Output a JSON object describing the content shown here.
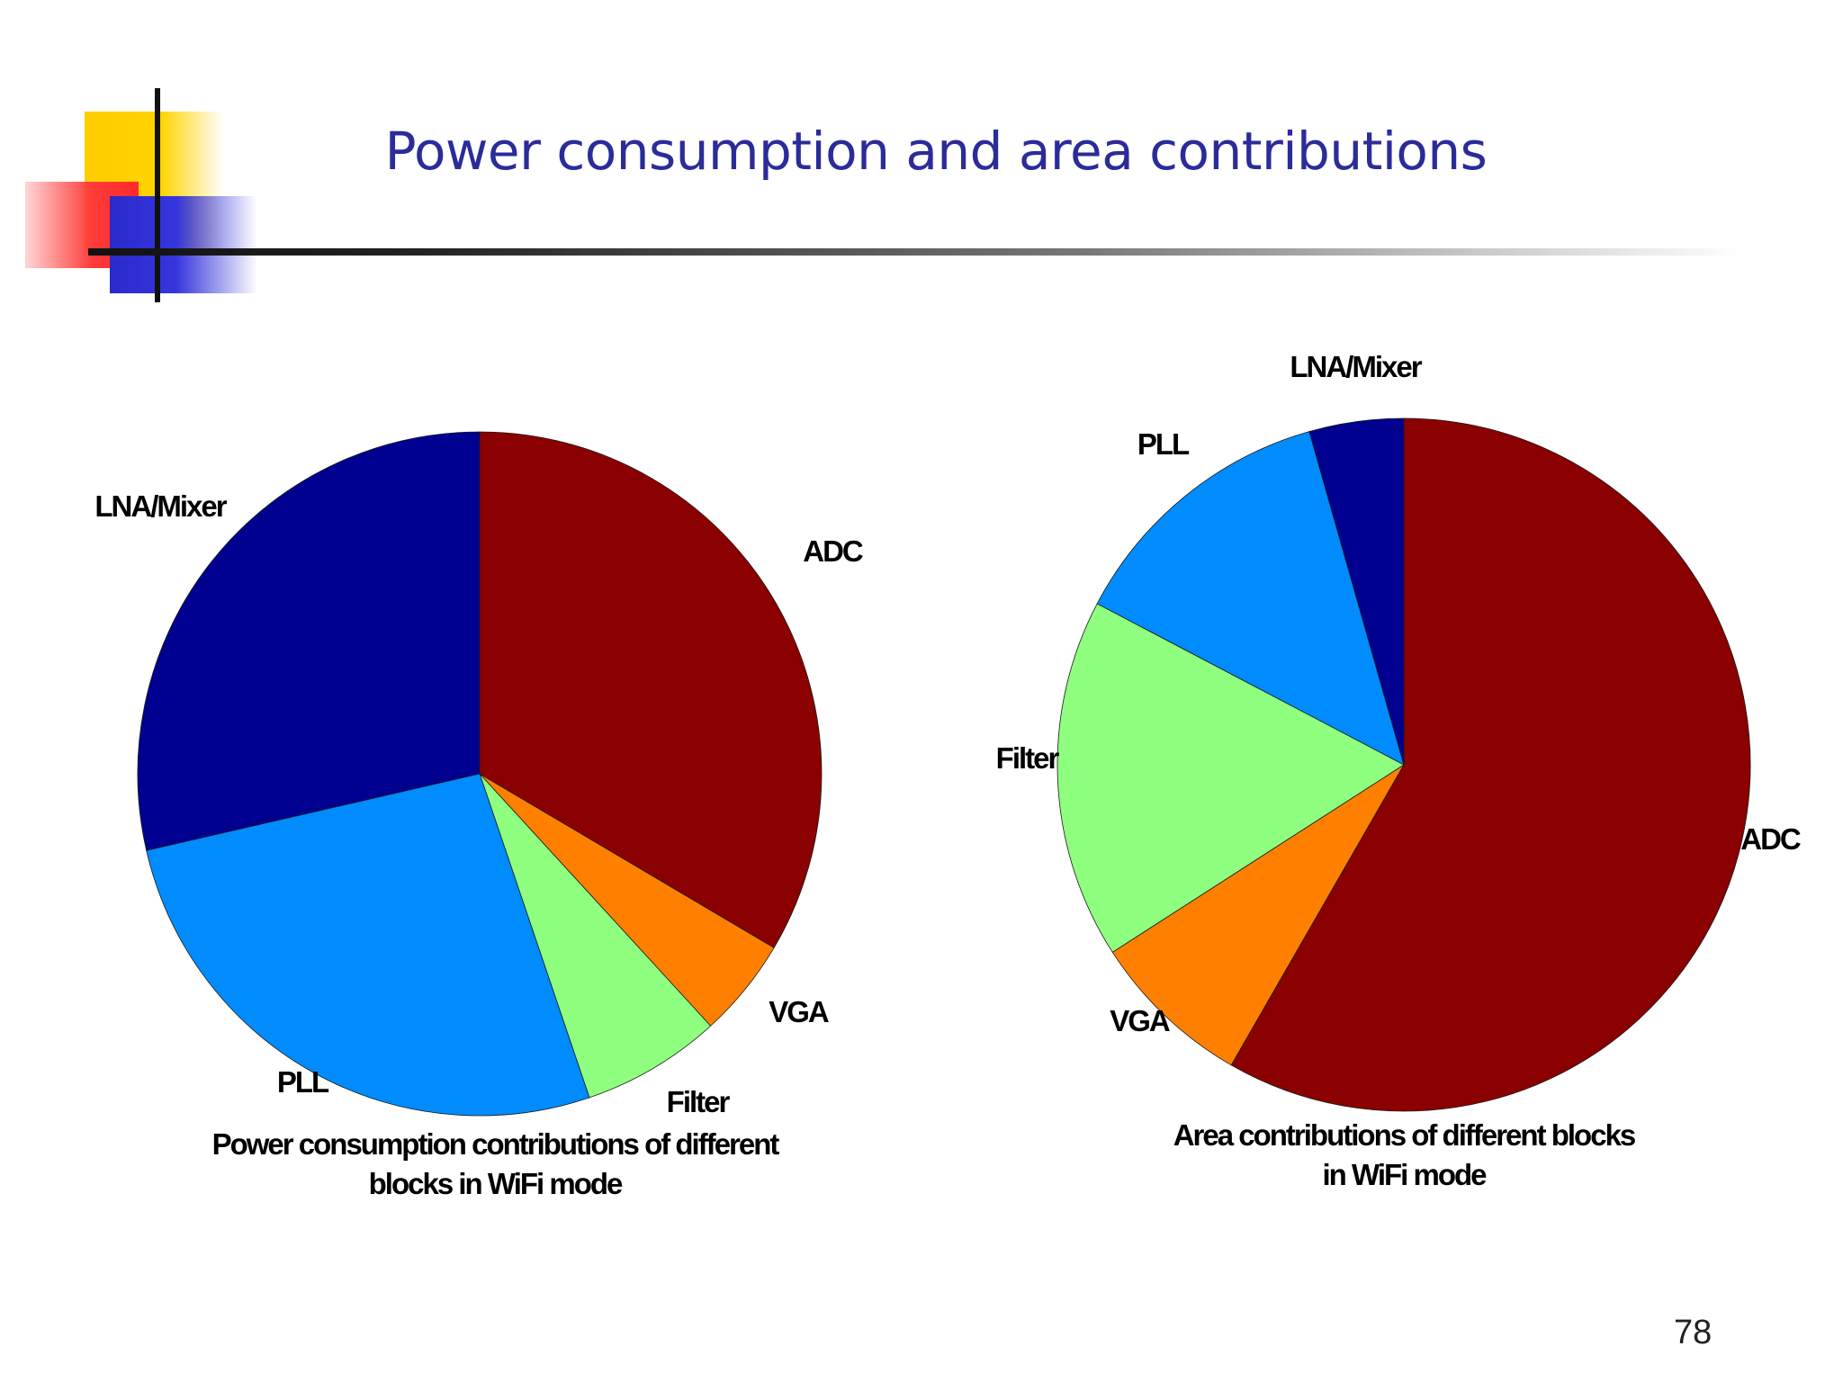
{
  "slide": {
    "title": "Power consumption and area contributions",
    "page_number": "78"
  },
  "colors": {
    "ADC": "#8b0000",
    "VGA": "#ff8000",
    "Filter": "#8fff80",
    "PLL": "#008cff",
    "LNA/Mixer": "#000090",
    "title": "#2b2b9a"
  },
  "chart_data": [
    {
      "type": "pie",
      "caption_lines": [
        "Power consumption contributions of different",
        "blocks in WiFi mode"
      ],
      "slices": [
        {
          "label": "ADC",
          "value": 33.5
        },
        {
          "label": "VGA",
          "value": 4.7
        },
        {
          "label": "Filter",
          "value": 6.6
        },
        {
          "label": "PLL",
          "value": 26.6
        },
        {
          "label": "LNA/Mixer",
          "value": 28.6
        }
      ]
    },
    {
      "type": "pie",
      "caption_lines": [
        "Area contributions of different blocks",
        "in WiFi mode"
      ],
      "slices": [
        {
          "label": "ADC",
          "value": 58.3
        },
        {
          "label": "VGA",
          "value": 7.6
        },
        {
          "label": "Filter",
          "value": 16.8
        },
        {
          "label": "PLL",
          "value": 12.9
        },
        {
          "label": "LNA/Mixer",
          "value": 4.4
        }
      ]
    }
  ]
}
